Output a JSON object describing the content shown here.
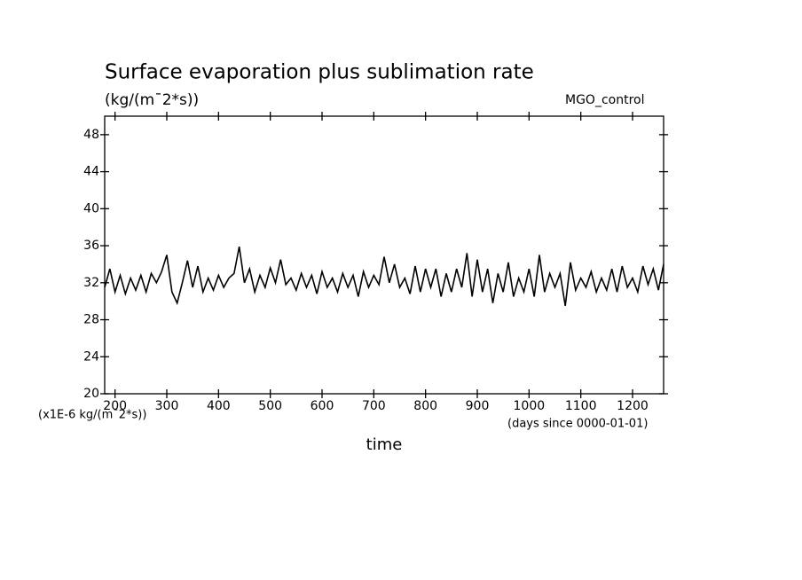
{
  "chart_data": {
    "type": "line",
    "title": "Surface evaporation plus sublimation rate",
    "subtitle": "(kg/(m¯2*s))",
    "y_unit_label": "(x1E-6 kg/(m¯2*s))",
    "x_unit_label": "(days since 0000-01-01)",
    "x_label": "time",
    "x": [
      180,
      190,
      200,
      210,
      220,
      230,
      240,
      250,
      260,
      270,
      280,
      290,
      300,
      310,
      320,
      330,
      340,
      350,
      360,
      370,
      380,
      390,
      400,
      410,
      420,
      430,
      440,
      450,
      460,
      470,
      480,
      490,
      500,
      510,
      520,
      530,
      540,
      550,
      560,
      570,
      580,
      590,
      600,
      610,
      620,
      630,
      640,
      650,
      660,
      670,
      680,
      690,
      700,
      710,
      720,
      730,
      740,
      750,
      760,
      770,
      780,
      790,
      800,
      810,
      820,
      830,
      840,
      850,
      860,
      870,
      880,
      890,
      900,
      910,
      920,
      930,
      940,
      950,
      960,
      970,
      980,
      990,
      1000,
      1010,
      1020,
      1030,
      1040,
      1050,
      1060,
      1070,
      1080,
      1090,
      1100,
      1110,
      1120,
      1130,
      1140,
      1150,
      1160,
      1170,
      1180,
      1190,
      1200,
      1210,
      1220,
      1230,
      1240,
      1250,
      1260
    ],
    "series": [
      {
        "name": "MGO_control",
        "color": "#000000",
        "values": [
          31.5,
          33.5,
          31.0,
          32.8,
          30.8,
          32.5,
          31.2,
          32.8,
          31.0,
          33.0,
          32.0,
          33.2,
          35.0,
          31.0,
          29.8,
          32.0,
          34.4,
          31.5,
          33.8,
          31.0,
          32.5,
          31.2,
          32.8,
          31.5,
          32.5,
          33.0,
          35.9,
          32.0,
          33.5,
          31.0,
          32.8,
          31.5,
          33.6,
          32.0,
          34.5,
          31.8,
          32.5,
          31.2,
          33.0,
          31.5,
          32.8,
          30.8,
          33.2,
          31.5,
          32.5,
          31.0,
          33.0,
          31.5,
          32.8,
          30.5,
          33.2,
          31.5,
          32.8,
          31.8,
          34.8,
          32.0,
          34.0,
          31.5,
          32.5,
          30.8,
          33.8,
          31.0,
          33.5,
          31.5,
          33.5,
          30.5,
          33.0,
          31.0,
          33.5,
          31.5,
          35.2,
          30.5,
          34.5,
          31.0,
          33.5,
          29.8,
          33.0,
          31.0,
          34.2,
          30.5,
          32.5,
          31.0,
          33.5,
          30.5,
          35.0,
          31.0,
          33.0,
          31.5,
          33.0,
          29.5,
          34.2,
          31.2,
          32.5,
          31.5,
          33.2,
          31.0,
          32.5,
          31.2,
          33.5,
          31.0,
          33.8,
          31.5,
          32.5,
          31.0,
          33.8,
          31.8,
          33.5,
          31.2,
          34.0
        ]
      }
    ],
    "xlim": [
      180,
      1260
    ],
    "ylim": [
      20,
      50
    ],
    "xticks": [
      200,
      300,
      400,
      500,
      600,
      700,
      800,
      900,
      1000,
      1100,
      1200
    ],
    "yticks": [
      20,
      24,
      28,
      32,
      36,
      40,
      44,
      48
    ]
  }
}
